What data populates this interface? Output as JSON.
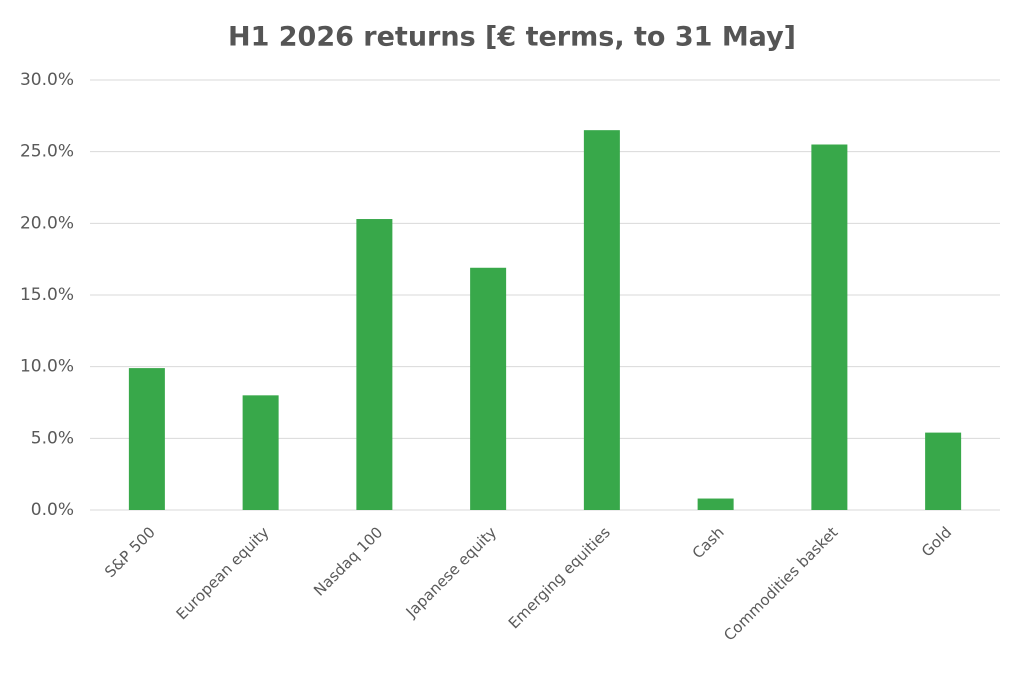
{
  "chart_data": {
    "type": "bar",
    "title": "H1 2026 returns [€ terms, to 31 May]",
    "categories": [
      "S&P 500",
      "European equity",
      "Nasdaq 100",
      "Japanese equity",
      "Emerging equities",
      "Cash",
      "Commodities basket",
      "Gold"
    ],
    "values": [
      9.9,
      8.0,
      20.3,
      16.9,
      26.5,
      0.8,
      25.5,
      5.4
    ],
    "color": "#38a84a",
    "ylim": [
      0,
      30
    ],
    "yticks": [
      {
        "value": 0,
        "label": "0.0%"
      },
      {
        "value": 5,
        "label": "5.0%"
      },
      {
        "value": 10,
        "label": "10.0%"
      },
      {
        "value": 15,
        "label": "15.0%"
      },
      {
        "value": 20,
        "label": "20.0%"
      },
      {
        "value": 25,
        "label": "25.0%"
      },
      {
        "value": 30,
        "label": "30.0%"
      }
    ],
    "grid": true
  }
}
